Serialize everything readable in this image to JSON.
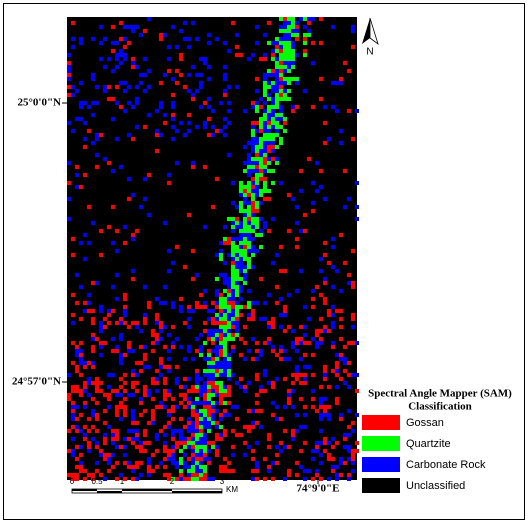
{
  "map": {
    "lat_labels": [
      "25°0'0\"N",
      "24°57'0\"N"
    ],
    "lon_label": "74°9'0\"E",
    "north": "N",
    "scale": {
      "labels": [
        "0",
        "0.5",
        "1",
        "2",
        "3"
      ],
      "unit": "KM"
    }
  },
  "legend": {
    "title": [
      "Spectral Angle Mapper (SAM)",
      "Classification"
    ],
    "items": [
      {
        "label": "Gossan",
        "color": "#ff0000"
      },
      {
        "label": "Quartzite",
        "color": "#00ff00"
      },
      {
        "label": "Carbonate Rock",
        "color": "#0000ff"
      },
      {
        "label": "Unclassified",
        "color": "#000000"
      }
    ]
  }
}
